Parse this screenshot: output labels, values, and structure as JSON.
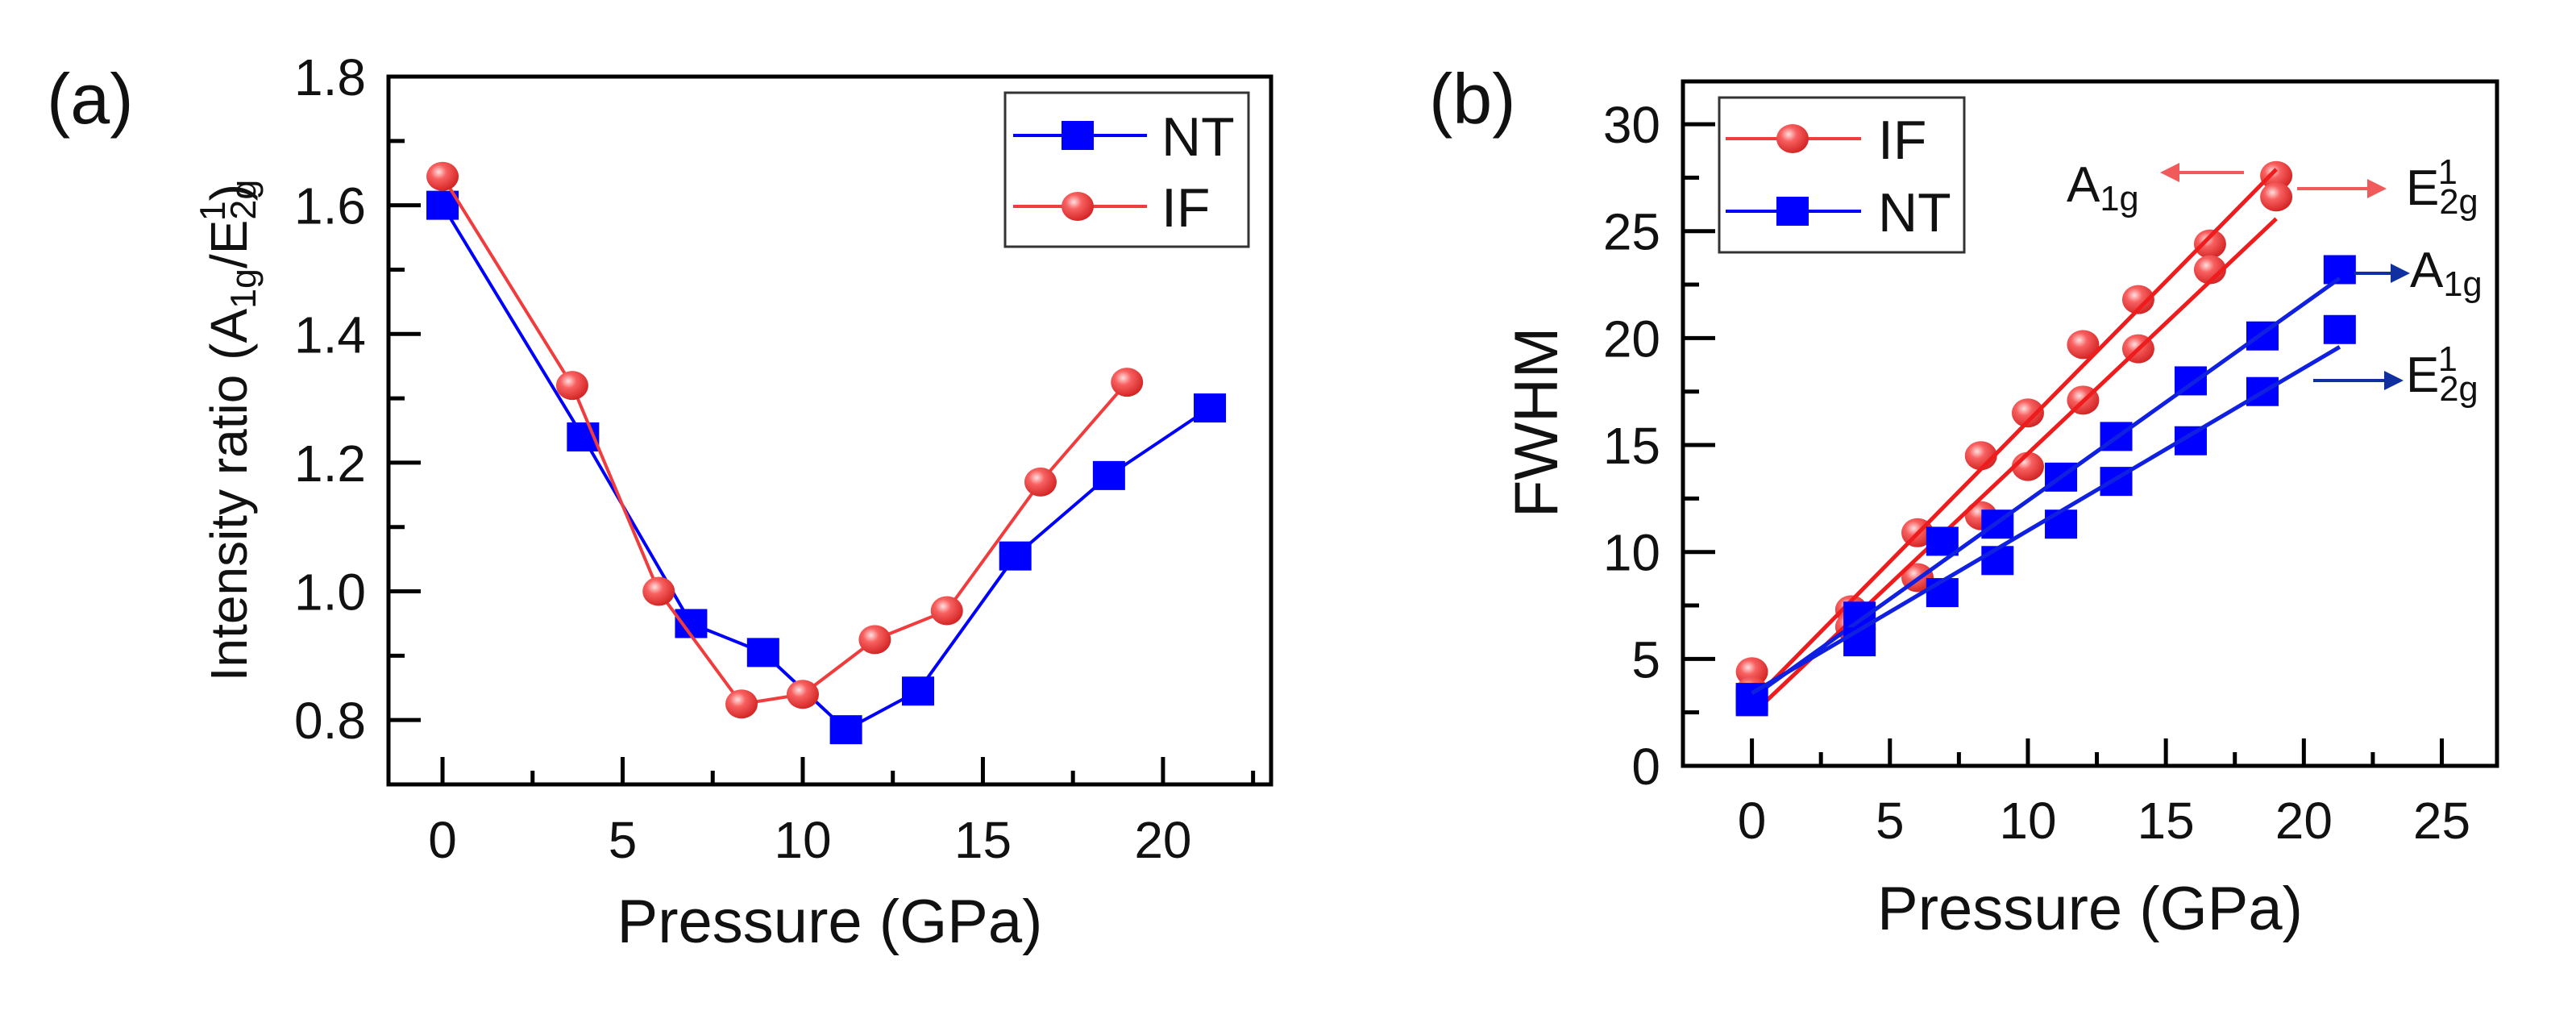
{
  "chart_data": [
    {
      "type": "line",
      "panel_label": "(a)",
      "xlabel": "Pressure (GPa)",
      "ylabel_parts": [
        {
          "t": "Intensity ratio (A"
        },
        {
          "t": "1g",
          "s": "sub"
        },
        {
          "t": "/E"
        },
        {
          "t": "2g",
          "s": "sub"
        },
        {
          "t": "1",
          "s": "sup"
        },
        {
          "t": ")"
        }
      ],
      "xlim": [
        -1.5,
        23
      ],
      "ylim": [
        0.7,
        1.8
      ],
      "xticks": [
        0,
        5,
        10,
        15,
        20
      ],
      "xtick_labels": [
        "0",
        "5",
        "10",
        "15",
        "20"
      ],
      "yticks": [
        0.8,
        1.0,
        1.2,
        1.4,
        1.6,
        1.8
      ],
      "ytick_labels": [
        "0.8",
        "1.0",
        "1.2",
        "1.4",
        "1.6",
        "1.8"
      ],
      "legend_position": "top-right",
      "series": [
        {
          "name": "NT",
          "marker": "square",
          "color": "#0000ff",
          "x": [
            0,
            3.9,
            6.9,
            8.9,
            11.2,
            13.2,
            15.9,
            18.5,
            21.3
          ],
          "y": [
            1.6,
            1.24,
            0.95,
            0.905,
            0.785,
            0.845,
            1.055,
            1.18,
            1.285
          ]
        },
        {
          "name": "IF",
          "marker": "circle",
          "color": "#f03c3c",
          "x": [
            0,
            3.6,
            6.0,
            8.3,
            10.0,
            12.0,
            14.0,
            16.6,
            19.0
          ],
          "y": [
            1.645,
            1.32,
            1.0,
            0.825,
            0.84,
            0.925,
            0.97,
            1.17,
            1.325
          ]
        }
      ]
    },
    {
      "type": "scatter",
      "panel_label": "(b)",
      "xlabel": "Pressure (GPa)",
      "ylabel_parts": [
        {
          "t": "FWHM"
        }
      ],
      "xlim": [
        -2.5,
        27
      ],
      "ylim": [
        0,
        32
      ],
      "xticks": [
        0,
        5,
        10,
        15,
        20,
        25
      ],
      "xtick_labels": [
        "0",
        "5",
        "10",
        "15",
        "20",
        "25"
      ],
      "yticks": [
        0,
        5,
        10,
        15,
        20,
        25,
        30
      ],
      "ytick_labels": [
        "0",
        "5",
        "10",
        "15",
        "20",
        "25",
        "30"
      ],
      "legend_position": "top-left",
      "legend": [
        {
          "name": "IF",
          "marker": "circle",
          "color": "#f03c3c"
        },
        {
          "name": "NT",
          "marker": "square",
          "color": "#0000ff"
        }
      ],
      "series": [
        {
          "name": "IF A1g",
          "marker": "circle",
          "color": "#f03c3c",
          "x": [
            0,
            3.6,
            6.0,
            8.3,
            10.0,
            12.0,
            14.0,
            16.6,
            19.0
          ],
          "y": [
            4.4,
            7.3,
            10.9,
            14.5,
            16.5,
            19.7,
            21.8,
            24.4,
            27.6
          ],
          "fit": {
            "slope": 1.31,
            "intercept": 3.0,
            "xrange": [
              0,
              19.0
            ]
          }
        },
        {
          "name": "IF E2g1",
          "marker": "circle",
          "color": "#f03c3c",
          "x": [
            0,
            3.6,
            6.0,
            8.3,
            10.0,
            12.0,
            14.0,
            16.6,
            19.0
          ],
          "y": [
            3.5,
            6.5,
            8.8,
            11.7,
            14.0,
            17.1,
            19.5,
            23.2,
            26.6
          ],
          "fit": {
            "slope": 1.22,
            "intercept": 2.4,
            "xrange": [
              0,
              19.0
            ]
          }
        },
        {
          "name": "NT A1g",
          "marker": "square",
          "color": "#0000ff",
          "x": [
            0,
            3.9,
            6.9,
            8.9,
            11.2,
            13.2,
            15.9,
            18.5,
            21.3
          ],
          "y": [
            3.2,
            7.0,
            10.5,
            11.3,
            13.5,
            15.4,
            18.0,
            20.1,
            23.2
          ],
          "fit": {
            "slope": 0.92,
            "intercept": 3.2,
            "xrange": [
              0,
              21.3
            ]
          }
        },
        {
          "name": "NT E2g1",
          "marker": "square",
          "color": "#0000ff",
          "x": [
            0,
            3.9,
            6.9,
            8.9,
            11.2,
            13.2,
            15.9,
            18.5,
            21.3
          ],
          "y": [
            3.0,
            5.8,
            8.1,
            9.6,
            11.3,
            13.3,
            15.2,
            17.5,
            20.4
          ],
          "fit": {
            "slope": 0.76,
            "intercept": 3.4,
            "xrange": [
              0,
              21.3
            ]
          }
        }
      ],
      "annotations": [
        {
          "parts": [
            {
              "t": "A"
            },
            {
              "t": "1g",
              "s": "sub"
            }
          ],
          "color": "#f05a5a",
          "arrow": "left"
        },
        {
          "parts": [
            {
              "t": "E"
            },
            {
              "t": "2g",
              "s": "sub"
            },
            {
              "t": "1",
              "s": "sup"
            }
          ],
          "color": "#f05a5a",
          "arrow": "right"
        },
        {
          "parts": [
            {
              "t": "A"
            },
            {
              "t": "1g",
              "s": "sub"
            }
          ],
          "color": "#1030a0",
          "arrow": "right"
        },
        {
          "parts": [
            {
              "t": "E"
            },
            {
              "t": "2g",
              "s": "sub"
            },
            {
              "t": "1",
              "s": "sup"
            }
          ],
          "color": "#1030a0",
          "arrow": "right"
        }
      ]
    }
  ]
}
